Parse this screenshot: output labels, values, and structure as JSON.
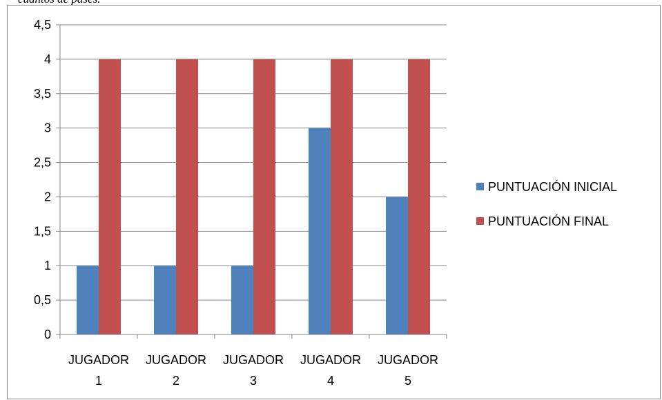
{
  "caption": "cuántos de pases.",
  "chart_data": {
    "type": "bar",
    "categories": [
      [
        "JUGADOR",
        "1"
      ],
      [
        "JUGADOR",
        "2"
      ],
      [
        "JUGADOR",
        "3"
      ],
      [
        "JUGADOR",
        "4"
      ],
      [
        "JUGADOR",
        "5"
      ]
    ],
    "series": [
      {
        "name": "PUNTUACIÓN INICIAL",
        "color": "#4f81bd",
        "values": [
          1,
          1,
          1,
          3,
          2
        ]
      },
      {
        "name": "PUNTUACIÓN FINAL",
        "color": "#c0504d",
        "values": [
          4,
          4,
          4,
          4,
          4
        ]
      }
    ],
    "yticks": [
      "0",
      "0,5",
      "1",
      "1,5",
      "2",
      "2,5",
      "3",
      "3,5",
      "4",
      "4,5"
    ],
    "ylim": [
      0,
      4.5
    ],
    "grid": true,
    "legend_position": "right"
  }
}
